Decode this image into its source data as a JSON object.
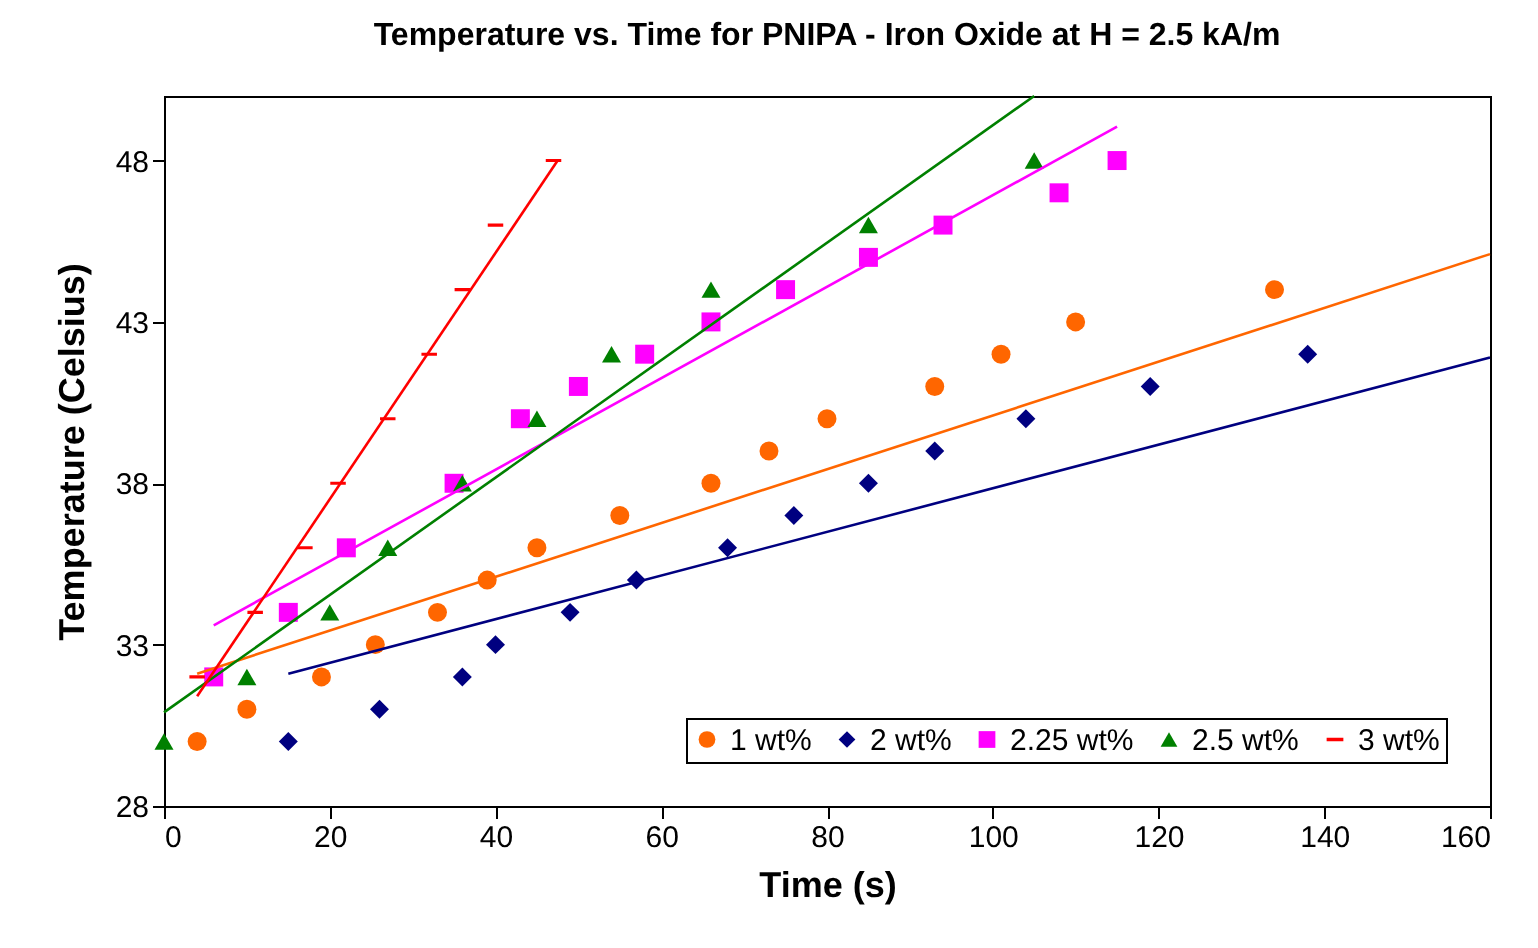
{
  "chart_data": {
    "type": "scatter",
    "title": "Temperature vs. Time for PNIPA - Iron Oxide at H = 2.5 kA/m",
    "xlabel": "Time (s)",
    "ylabel": "Temperature (Celsius)",
    "xlim": [
      0,
      160
    ],
    "xticks": [
      0,
      20,
      40,
      60,
      80,
      100,
      120,
      140,
      160
    ],
    "ylim": [
      28,
      50
    ],
    "yticks": [
      28,
      33,
      38,
      43,
      48
    ],
    "grid": false,
    "legend": "bottom right",
    "series": [
      {
        "name": "1 wt%",
        "color": "#ff6600",
        "marker": "circle",
        "x": [
          4,
          10,
          19,
          25.5,
          33,
          39,
          45,
          55,
          66,
          73,
          80,
          93,
          101,
          110,
          134
        ],
        "values": [
          30,
          31,
          32,
          33,
          34,
          35,
          36,
          37,
          38,
          39,
          40,
          41,
          42,
          43,
          44
        ]
      },
      {
        "name": "2 wt%",
        "color": "#000080",
        "marker": "diamond",
        "x": [
          15,
          26,
          36,
          40,
          49,
          57,
          68,
          76,
          85,
          93,
          104,
          119,
          138
        ],
        "values": [
          30,
          31,
          32,
          33,
          34,
          35,
          36,
          37,
          38,
          39,
          40,
          41,
          42
        ]
      },
      {
        "name": "2.25 wt%",
        "color": "#ff00ff",
        "marker": "square",
        "x": [
          6,
          15,
          22,
          35,
          43,
          50,
          58,
          66,
          75,
          85,
          94,
          108,
          115
        ],
        "values": [
          32,
          34,
          36,
          38,
          40,
          41,
          42,
          43,
          44,
          45,
          46,
          47,
          48
        ]
      },
      {
        "name": "2.5 wt%",
        "color": "#008000",
        "marker": "triangle",
        "x": [
          0,
          10,
          20,
          27,
          36,
          45,
          54,
          66,
          85,
          105
        ],
        "values": [
          30,
          32,
          34,
          36,
          38,
          40,
          42,
          44,
          46,
          48
        ]
      },
      {
        "name": "3 wt%",
        "color": "#ff0000",
        "x": [
          4,
          11,
          17,
          21,
          27,
          32,
          36,
          40,
          47
        ],
        "values": [
          32,
          34,
          36,
          38,
          40,
          42,
          44,
          46,
          48
        ]
      },
      {
        "type": "line",
        "color": "#ff6600",
        "x": [
          4,
          160
        ],
        "values": [
          32.1,
          45.1
        ]
      },
      {
        "type": "line",
        "color": "#000080",
        "x": [
          15,
          160
        ],
        "values": [
          32.1,
          41.9
        ]
      },
      {
        "type": "line",
        "color": "#ff00ff",
        "x": [
          6,
          115
        ],
        "values": [
          33.6,
          49.05
        ]
      },
      {
        "type": "line",
        "color": "#008000",
        "x": [
          0,
          105
        ],
        "values": [
          30.9,
          50
        ]
      },
      {
        "type": "line",
        "color": "#ff0000",
        "x": [
          4,
          47.5
        ],
        "values": [
          31.4,
          48
        ]
      }
    ]
  }
}
